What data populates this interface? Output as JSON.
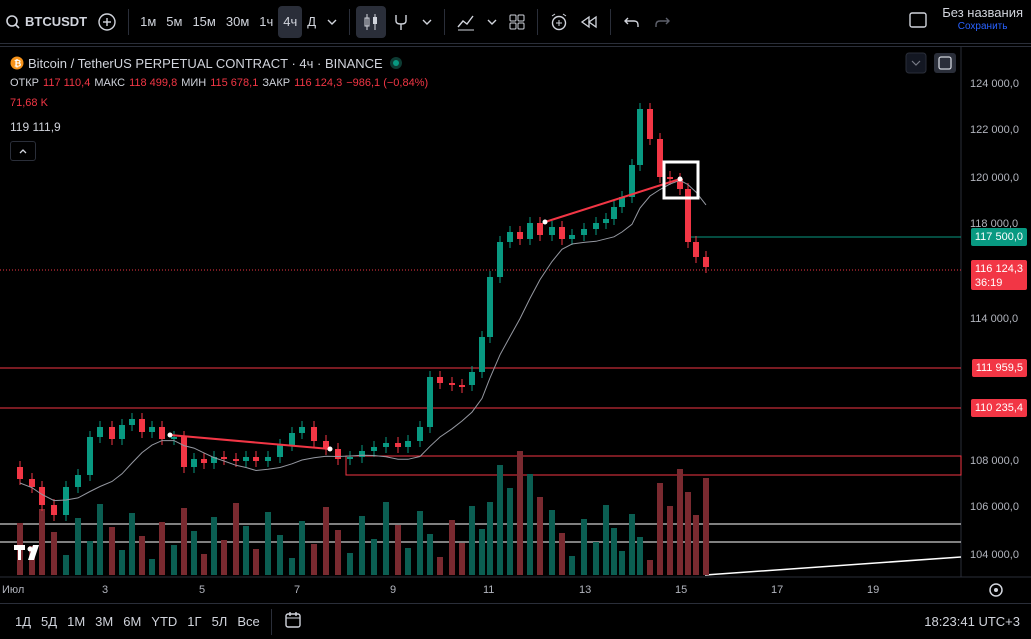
{
  "toolbar": {
    "symbol": "BTCUSDT",
    "intervals": [
      "1м",
      "5м",
      "15м",
      "30м",
      "1ч",
      "4ч",
      "Д"
    ],
    "active_interval": "4ч",
    "layout_title": "Без названия",
    "save_label": "Сохранить"
  },
  "legend": {
    "title": "Bitcoin / TetherUS PERPETUAL CONTRACT · 4ч · BINANCE",
    "open_label": "ОТКР",
    "open": "117 110,4",
    "high_label": "МАКС",
    "high": "118 499,8",
    "low_label": "МИН",
    "low": "115 678,1",
    "close_label": "ЗАКР",
    "close": "116 124,3",
    "change": "−986,1 (−0,84%)",
    "volume": "71,68 K",
    "indicator_value": "119 111,9"
  },
  "price_axis": {
    "ticks": [
      "124 000,0",
      "122 000,0",
      "120 000,0",
      "118 000,0",
      "114 000,0",
      "108 000,0",
      "106 000,0",
      "104 000,0"
    ],
    "tags": [
      {
        "label": "117 500,0",
        "color": "#089981"
      },
      {
        "label": "116 124,3",
        "sub": "36:19",
        "color": "#f23645"
      },
      {
        "label": "111 959,5",
        "color": "#f23645"
      },
      {
        "label": "110 235,4",
        "color": "#f23645"
      }
    ]
  },
  "time_axis": {
    "ticks": [
      "Июл",
      "3",
      "5",
      "7",
      "9",
      "11",
      "13",
      "15",
      "17",
      "19"
    ]
  },
  "bottombar": {
    "ranges": [
      "1Д",
      "5Д",
      "1М",
      "3М",
      "6М",
      "YTD",
      "1Г",
      "5Л",
      "Все"
    ],
    "clock": "18:23:41 UTC+3"
  },
  "colors": {
    "up": "#089981",
    "down": "#f23645",
    "bg": "#000000",
    "accent": "#2962ff"
  }
}
